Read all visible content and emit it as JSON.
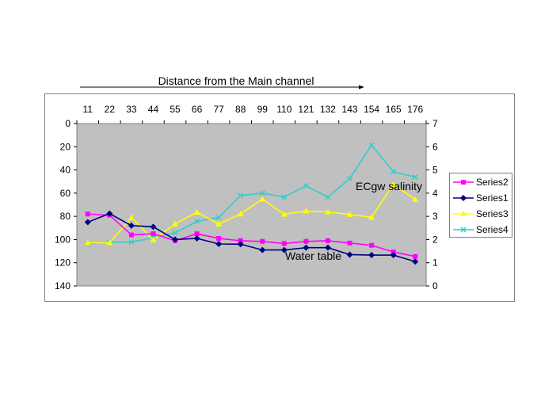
{
  "chart_data": {
    "type": "line",
    "title": "Distance from the Main channel",
    "categories": [
      "11",
      "22",
      "33",
      "44",
      "55",
      "66",
      "77",
      "88",
      "99",
      "110",
      "121",
      "132",
      "143",
      "154",
      "165",
      "176"
    ],
    "left_axis": {
      "min": 0,
      "max": 140,
      "step": 20,
      "inverted": true,
      "ticks": [
        "0",
        "20",
        "40",
        "60",
        "80",
        "100",
        "120",
        "140"
      ]
    },
    "right_axis": {
      "min": 0,
      "max": 7,
      "step": 1,
      "ticks": [
        "0",
        "1",
        "2",
        "3",
        "4",
        "5",
        "6",
        "7"
      ]
    },
    "grid": false,
    "legend_position": "right",
    "plot_background": "#c0c0c0",
    "annotations": {
      "salinity": "ECgw salinity",
      "water_table": "Water table"
    },
    "series": [
      {
        "name": "Series2",
        "axis": "left",
        "color": "#ff00ff",
        "marker": "square",
        "values": [
          78,
          79,
          96,
          95,
          101,
          95,
          99,
          101,
          101.6,
          103.4,
          101.6,
          101,
          103,
          105,
          110.7,
          114.6
        ]
      },
      {
        "name": "Series1",
        "axis": "left",
        "color": "#000080",
        "marker": "diamond",
        "values": [
          85,
          77.6,
          88,
          89,
          100,
          99,
          103.8,
          104,
          109,
          109,
          107,
          107,
          113,
          113.4,
          113.4,
          119
        ]
      },
      {
        "name": "Series3",
        "axis": "right",
        "color": "#ffff00",
        "marker": "triangle",
        "values": [
          1.86,
          1.86,
          2.95,
          1.98,
          2.67,
          3.18,
          2.67,
          3.1,
          3.74,
          3.09,
          3.23,
          3.19,
          3.08,
          2.96,
          4.38,
          3.72
        ]
      },
      {
        "name": "Series4",
        "axis": "right",
        "color": "#33cccc",
        "marker": "x",
        "values": [
          1.81,
          1.89,
          1.89,
          2.08,
          2.29,
          2.78,
          2.95,
          3.9,
          4.0,
          3.83,
          4.32,
          3.83,
          4.63,
          6.07,
          4.93,
          4.69
        ]
      }
    ]
  }
}
